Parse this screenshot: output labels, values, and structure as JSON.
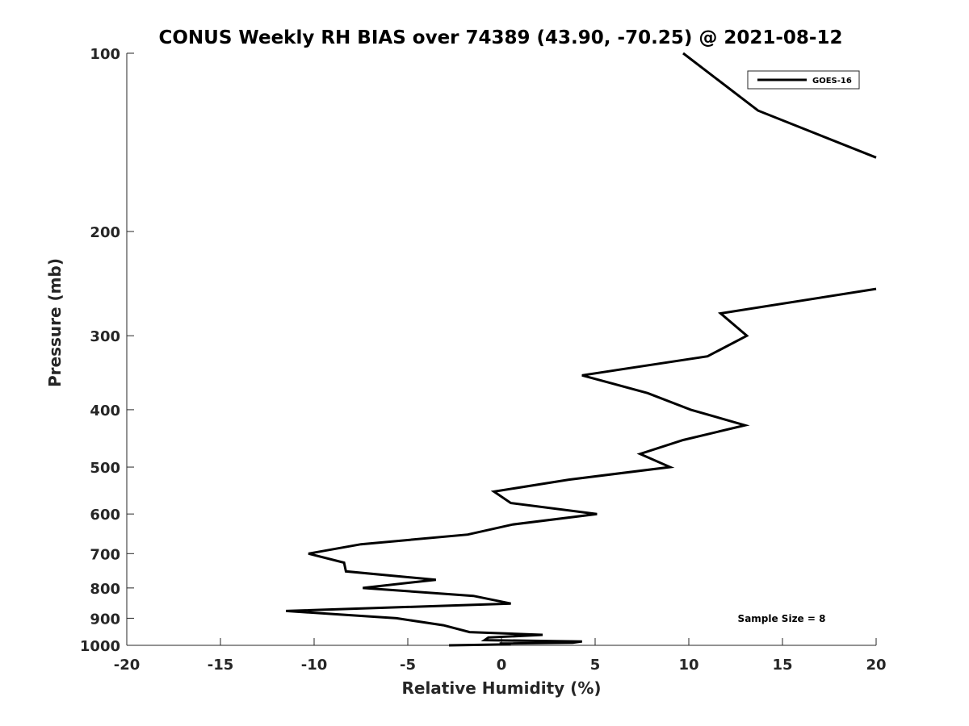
{
  "chart_data": {
    "type": "line",
    "title": "CONUS Weekly RH BIAS over 74389 (43.90, -70.25) @ 2021-08-12",
    "xlabel": "Relative Humidity (%)",
    "ylabel": "Pressure (mb)",
    "xlim": [
      -20,
      20
    ],
    "ylim": [
      1000,
      100
    ],
    "y_scale": "log",
    "grid": false,
    "legend_position": "top-right",
    "x_ticks": [
      -20,
      -15,
      -10,
      -5,
      0,
      5,
      10,
      15,
      20
    ],
    "x_tick_labels": [
      "-20",
      "-15",
      "-10",
      "-5",
      "0",
      "5",
      "10",
      "15",
      "20"
    ],
    "y_ticks": [
      100,
      200,
      300,
      400,
      500,
      600,
      700,
      800,
      900,
      1000
    ],
    "y_tick_labels": [
      "100",
      "200",
      "300",
      "400",
      "500",
      "600",
      "700",
      "800",
      "900",
      "1000"
    ],
    "annotation": "Sample Size = 8",
    "series": [
      {
        "name": "GOES-16",
        "color": "#000000",
        "segments": [
          [
            {
              "x": 9.7,
              "y": 100
            },
            {
              "x": 13.7,
              "y": 125
            },
            {
              "x": 20,
              "y": 150
            }
          ],
          [
            {
              "x": 20,
              "y": 250
            },
            {
              "x": 11.7,
              "y": 275
            },
            {
              "x": 13.1,
              "y": 300
            },
            {
              "x": 11.0,
              "y": 325
            },
            {
              "x": 4.3,
              "y": 350
            },
            {
              "x": 7.8,
              "y": 375
            },
            {
              "x": 10.1,
              "y": 400
            },
            {
              "x": 13.0,
              "y": 425
            },
            {
              "x": 9.7,
              "y": 450
            },
            {
              "x": 7.4,
              "y": 475
            },
            {
              "x": 9.0,
              "y": 500
            },
            {
              "x": 3.6,
              "y": 525
            },
            {
              "x": -0.4,
              "y": 550
            },
            {
              "x": 0.5,
              "y": 575
            },
            {
              "x": 5.1,
              "y": 600
            },
            {
              "x": 0.6,
              "y": 625
            },
            {
              "x": -1.8,
              "y": 650
            },
            {
              "x": -7.5,
              "y": 675
            },
            {
              "x": -10.3,
              "y": 700
            },
            {
              "x": -8.4,
              "y": 725
            },
            {
              "x": -8.3,
              "y": 750
            },
            {
              "x": -3.5,
              "y": 775
            },
            {
              "x": -7.4,
              "y": 800
            },
            {
              "x": -1.5,
              "y": 825
            },
            {
              "x": 0.5,
              "y": 850
            },
            {
              "x": -11.5,
              "y": 875
            },
            {
              "x": -5.6,
              "y": 900
            },
            {
              "x": -3.1,
              "y": 925
            },
            {
              "x": -1.7,
              "y": 950
            },
            {
              "x": 2.2,
              "y": 960
            },
            {
              "x": -0.7,
              "y": 970
            },
            {
              "x": -0.9,
              "y": 980
            },
            {
              "x": 4.3,
              "y": 985
            },
            {
              "x": 3.8,
              "y": 990
            },
            {
              "x": -0.1,
              "y": 993
            },
            {
              "x": 0.5,
              "y": 996
            },
            {
              "x": -2.8,
              "y": 1000
            }
          ]
        ]
      }
    ]
  }
}
